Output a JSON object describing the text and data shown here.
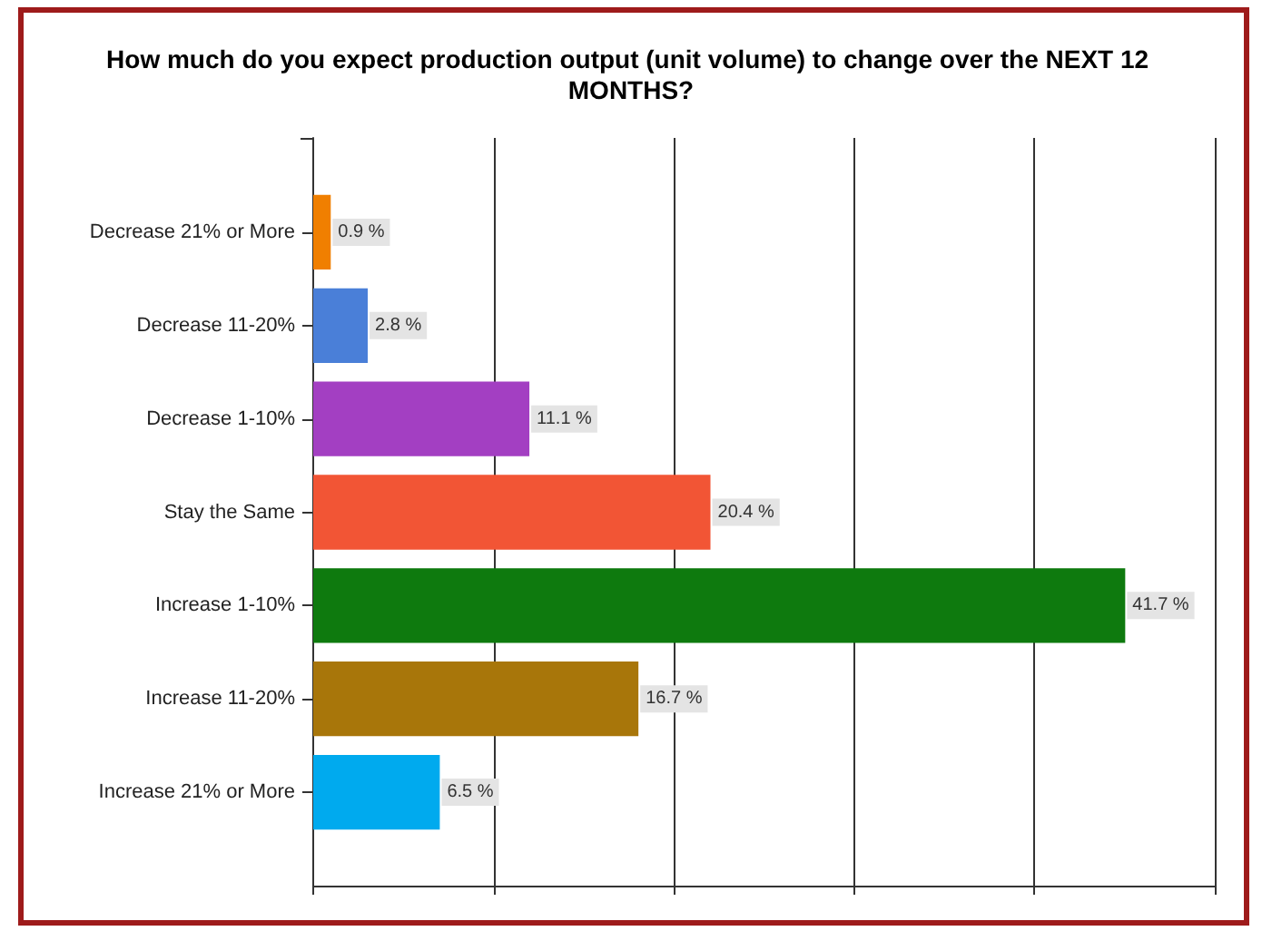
{
  "chart_data": {
    "type": "bar",
    "orientation": "horizontal",
    "title": "How much do you expect production output (unit volume) to change over the NEXT 12 MONTHS?",
    "categories": [
      "Decrease 21% or More",
      "Decrease 11-20%",
      "Decrease 1-10%",
      "Stay the Same",
      "Increase 1-10%",
      "Increase 11-20%",
      "Increase 21% or More"
    ],
    "values": [
      0.9,
      2.8,
      11.1,
      20.4,
      41.7,
      16.7,
      6.5
    ],
    "colors": [
      "#f07f00",
      "#4a7fd8",
      "#a33fc2",
      "#f25535",
      "#0e7a0e",
      "#a8760a",
      "#00aaee"
    ],
    "value_labels": [
      "0.9 %",
      "2.8 %",
      "11.1 %",
      "20.4 %",
      "41.7 %",
      "16.7 %",
      "6.5 %"
    ],
    "xlim": [
      0,
      46.3
    ],
    "xticks": [
      {
        "value": 0,
        "label": null
      },
      {
        "value": 9.26,
        "label": null
      },
      {
        "value": 18.52,
        "label": null
      },
      {
        "value": 27.78,
        "label": null
      },
      {
        "value": 37.04,
        "label": null
      },
      {
        "value": 46.3,
        "label": null
      }
    ],
    "grid": "x",
    "tick_labels": "y"
  }
}
